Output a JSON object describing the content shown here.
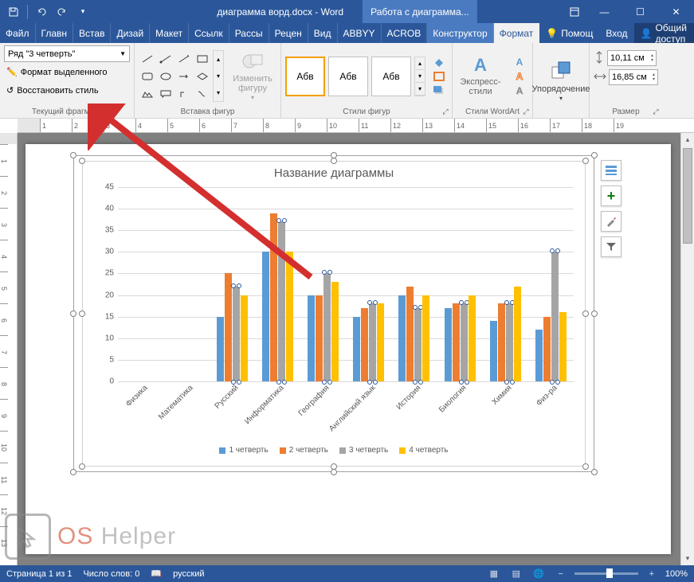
{
  "titlebar": {
    "doc_title": "диаграмма ворд.docx - Word",
    "context_tab": "Работа с диаграмма..."
  },
  "win": {
    "minimize": "—",
    "maximize": "☐",
    "close": "✕"
  },
  "tabs": {
    "file": "Файл",
    "items": [
      "Главн",
      "Встав",
      "Дизай",
      "Макет",
      "Ссылк",
      "Рассы",
      "Рецен",
      "Вид",
      "ABBYY",
      "ACROB"
    ],
    "ctx": [
      "Конструктор",
      "Формат"
    ],
    "active": "Формат",
    "help_label": "Помощ",
    "login": "Вход",
    "share": "Общий доступ"
  },
  "ribbon": {
    "selection": {
      "combo_value": "Ряд \"3 четверть\"",
      "format_sel": "Формат выделенного",
      "reset_style": "Восстановить стиль",
      "group_label": "Текущий фрагмент"
    },
    "shapes": {
      "change_shape": "Изменить фигуру",
      "group_label": "Вставка фигур"
    },
    "styles": {
      "sample": "Абв",
      "fill": "",
      "outline": "",
      "effects": "",
      "group_label": "Стили фигур"
    },
    "wordart": {
      "sample": "A",
      "express": "Экспресс-стили",
      "group_label": "Стили WordArt"
    },
    "arrange": {
      "label": "Упорядочение"
    },
    "size": {
      "height": "10,11 см",
      "width": "16,85 см",
      "group_label": "Размер"
    }
  },
  "chart": {
    "title": "Название диаграммы",
    "ymax": 45,
    "ystep": 5,
    "categories": [
      "Физика",
      "Математика",
      "Русский",
      "Информатика",
      "География",
      "Английский язык",
      "История",
      "Биология",
      "Химия",
      "Физ-ра"
    ],
    "series": [
      {
        "name": "1 четверть",
        "color": "#5b9bd5",
        "values": [
          null,
          null,
          15,
          30,
          20,
          15,
          20,
          17,
          14,
          12
        ]
      },
      {
        "name": "2 четверть",
        "color": "#ed7d31",
        "values": [
          null,
          null,
          25,
          39,
          20,
          17,
          22,
          18,
          18,
          15
        ]
      },
      {
        "name": "3 четверть",
        "color": "#a5a5a5",
        "values": [
          null,
          null,
          22,
          37,
          25,
          18,
          17,
          18,
          18,
          30
        ]
      },
      {
        "name": "4 четверть",
        "color": "#ffc000",
        "values": [
          null,
          null,
          20,
          30,
          23,
          18,
          20,
          20,
          22,
          16
        ]
      }
    ],
    "selected_series_index": 2
  },
  "side_buttons": {
    "layout": "≡",
    "plus": "+",
    "brush": "🖌",
    "filter": "▼"
  },
  "status": {
    "page": "Страница 1 из 1",
    "words": "Число слов: 0",
    "lang": "русский",
    "zoom": "100%"
  },
  "watermark": {
    "os": "OS",
    "helper": "Helper"
  },
  "ruler_max": 19
}
